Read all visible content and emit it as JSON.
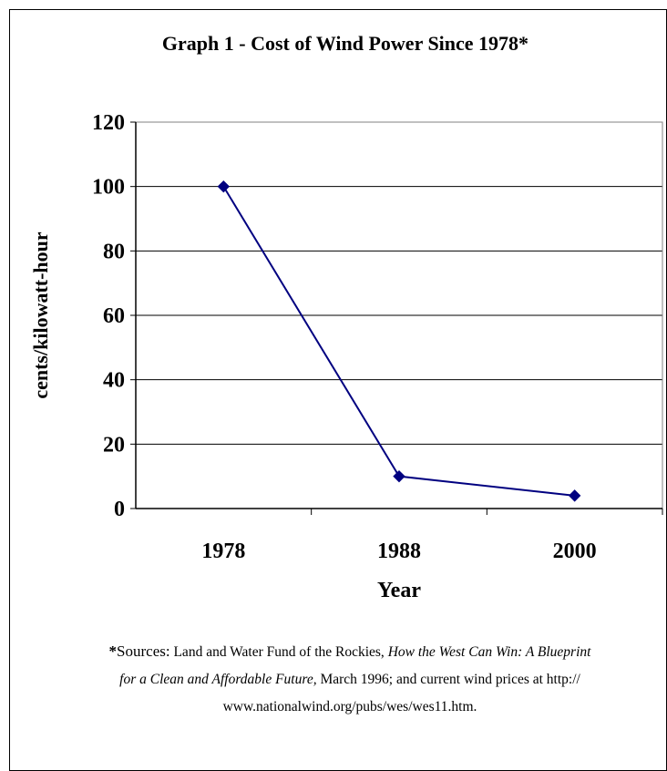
{
  "chart_data": {
    "type": "line",
    "title": "Graph 1 - Cost of Wind Power Since 1978*",
    "xlabel": "Year",
    "ylabel": "cents/kilowatt-hour",
    "categories": [
      "1978",
      "1988",
      "2000"
    ],
    "series": [
      {
        "values": [
          100,
          10,
          4
        ],
        "color": "#000080",
        "marker": "diamond"
      }
    ],
    "ylim": [
      0,
      120
    ],
    "yticks": [
      0,
      20,
      40,
      60,
      80,
      100,
      120
    ],
    "grid": true
  },
  "footnote": {
    "star": "*",
    "label": "Sources:",
    "text_1": " Land and Water Fund of the Rockies, ",
    "book_title": "How the West Can Win: A Blueprint for a Clean and Affordable Future,",
    "text_2": " March 1996; and current wind prices at http:// www.nationalwind.org/pubs/wes/wes11.htm."
  }
}
